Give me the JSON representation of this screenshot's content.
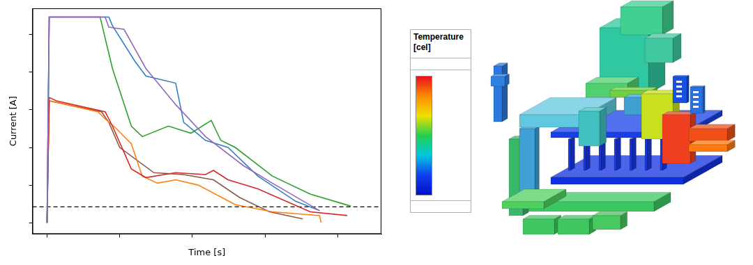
{
  "chart_data": {
    "type": "line",
    "x_label": "Time [s]",
    "y_label": "Current [A]",
    "xlim": [
      -0.2,
      4.6
    ],
    "xticks": [
      0,
      1,
      2,
      3,
      4
    ],
    "ylim": [
      -0.3,
      5.7
    ],
    "yticks": [
      0,
      1,
      2,
      3,
      4,
      5
    ],
    "tick_labels": false,
    "grid": false,
    "series": [
      {
        "color": "#9467bd",
        "values": [
          [
            0,
            0
          ],
          [
            0.03,
            5.47
          ],
          [
            0.8,
            5.47
          ],
          [
            0.85,
            5.2
          ],
          [
            1.06,
            5.14
          ],
          [
            1.36,
            4.1
          ],
          [
            1.77,
            3.14
          ],
          [
            2.18,
            2.29
          ],
          [
            2.7,
            1.52
          ],
          [
            3.1,
            1.05
          ],
          [
            3.75,
            0.32
          ]
        ]
      },
      {
        "color": "#2f7fc1",
        "values": [
          [
            0,
            0
          ],
          [
            0.03,
            5.47
          ],
          [
            0.85,
            5.47
          ],
          [
            0.9,
            5.24
          ],
          [
            1.21,
            4.29
          ],
          [
            1.36,
            3.9
          ],
          [
            1.77,
            3.71
          ],
          [
            1.88,
            2.67
          ],
          [
            2.18,
            2.19
          ],
          [
            2.49,
            2.0
          ],
          [
            2.9,
            1.24
          ],
          [
            3.42,
            0.57
          ],
          [
            3.75,
            0.32
          ]
        ]
      },
      {
        "color": "#2ca02c",
        "values": [
          [
            0,
            0
          ],
          [
            0.03,
            5.47
          ],
          [
            0.73,
            5.47
          ],
          [
            0.9,
            4.1
          ],
          [
            1.16,
            2.57
          ],
          [
            1.31,
            2.29
          ],
          [
            1.67,
            2.57
          ],
          [
            1.98,
            2.38
          ],
          [
            2.26,
            2.72
          ],
          [
            2.39,
            2.19
          ],
          [
            2.59,
            2.0
          ],
          [
            3.1,
            1.24
          ],
          [
            3.62,
            0.76
          ],
          [
            4.18,
            0.44
          ]
        ]
      },
      {
        "color": "#d62728",
        "values": [
          [
            0,
            0
          ],
          [
            0.03,
            3.33
          ],
          [
            0.13,
            3.24
          ],
          [
            0.8,
            2.95
          ],
          [
            0.9,
            2.57
          ],
          [
            1.16,
            1.43
          ],
          [
            1.36,
            1.2
          ],
          [
            1.77,
            1.33
          ],
          [
            2.18,
            1.28
          ],
          [
            2.29,
            1.39
          ],
          [
            2.49,
            1.14
          ],
          [
            2.9,
            0.9
          ],
          [
            3.62,
            0.29
          ],
          [
            4.13,
            0.19
          ]
        ]
      },
      {
        "color": "#ff7f0e",
        "values": [
          [
            0,
            0
          ],
          [
            0.03,
            3.24
          ],
          [
            0.7,
            2.95
          ],
          [
            0.8,
            2.76
          ],
          [
            0.95,
            2.51
          ],
          [
            1.16,
            2.1
          ],
          [
            1.31,
            1.24
          ],
          [
            1.52,
            1.05
          ],
          [
            1.77,
            1.14
          ],
          [
            2.08,
            1.0
          ],
          [
            2.59,
            0.48
          ],
          [
            3.1,
            0.29
          ],
          [
            3.75,
            0.19
          ],
          [
            3.77,
            0
          ]
        ]
      },
      {
        "color": "#8c564b",
        "values": [
          [
            0,
            0
          ],
          [
            0.03,
            3.24
          ],
          [
            0.75,
            2.95
          ],
          [
            0.85,
            2.67
          ],
          [
            1.0,
            2.0
          ],
          [
            1.47,
            1.33
          ],
          [
            1.88,
            1.28
          ],
          [
            2.29,
            1.14
          ],
          [
            2.65,
            0.67
          ],
          [
            3.06,
            0.29
          ],
          [
            3.52,
            0.1
          ]
        ]
      }
    ],
    "hlines": [
      {
        "y": 0.42,
        "color": "#000000",
        "line_style": "dashed"
      }
    ]
  },
  "colorbar": {
    "title": "Temperature [cel]",
    "colors": [
      "#e8101c",
      "#ff8a00",
      "#f0e000",
      "#20d050",
      "#00c8e0",
      "#1040f0",
      "#0010c8"
    ]
  }
}
